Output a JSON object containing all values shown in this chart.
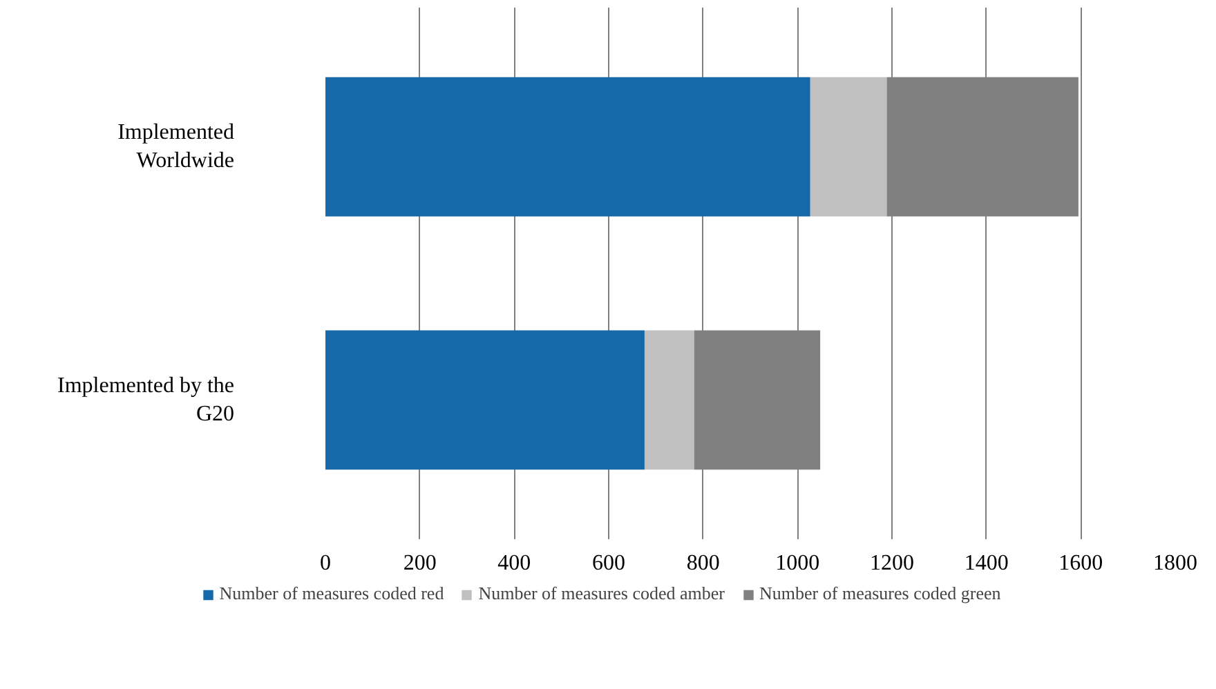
{
  "chart_data": {
    "type": "bar",
    "orientation": "horizontal",
    "stacked": true,
    "categories": [
      "Implemented Worldwide",
      "Implemented by the G20"
    ],
    "series": [
      {
        "name": "Number of measures coded red",
        "color": "#1569a8",
        "values": [
          1027,
          676
        ]
      },
      {
        "name": "Number of measures coded amber",
        "color": "#c0c0c0",
        "values": [
          162,
          105
        ]
      },
      {
        "name": "Number of measures coded green",
        "color": "#808080",
        "values": [
          406,
          267
        ]
      }
    ],
    "xlim": [
      0,
      1800
    ],
    "xticks": [
      0,
      200,
      400,
      600,
      800,
      1000,
      1200,
      1400,
      1600,
      1800
    ],
    "grid": "x",
    "legend": "bottom"
  }
}
